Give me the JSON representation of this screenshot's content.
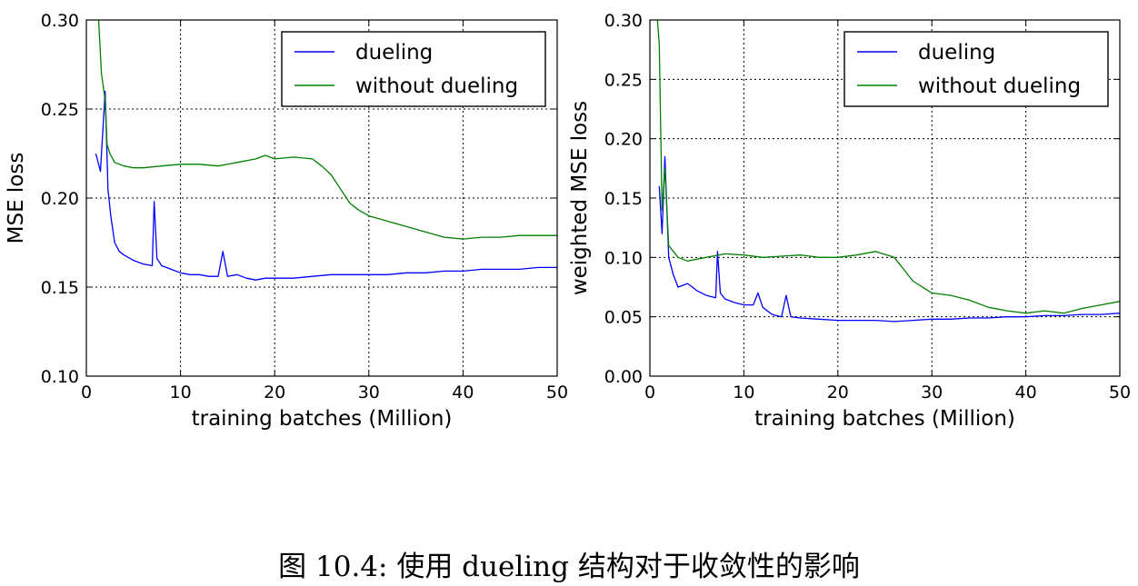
{
  "caption": "图 10.4: 使用 dueling 结构对于收敛性的影响",
  "colors": {
    "dueling": "#0000ff",
    "without_dueling": "#007f00"
  },
  "chart_data": [
    {
      "type": "line",
      "xlabel": "training batches (Million)",
      "ylabel": "MSE loss",
      "xlim": [
        0,
        50
      ],
      "ylim": [
        0.1,
        0.3
      ],
      "xticks": [
        0,
        10,
        20,
        30,
        40,
        50
      ],
      "yticks": [
        0.1,
        0.15,
        0.2,
        0.25,
        0.3
      ],
      "xtick_labels": [
        "0",
        "10",
        "20",
        "30",
        "40",
        "50"
      ],
      "ytick_labels": [
        "0.10",
        "0.15",
        "0.20",
        "0.25",
        "0.30"
      ],
      "grid": true,
      "legend": "top-right",
      "series": [
        {
          "name": "dueling",
          "color": "#0000ff",
          "x": [
            1,
            1.5,
            2,
            2.3,
            2.6,
            3,
            3.5,
            4,
            5,
            6,
            7,
            7.2,
            7.5,
            8,
            9,
            10,
            11,
            12,
            13,
            14,
            14.5,
            15,
            16,
            17,
            18,
            19,
            20,
            22,
            24,
            26,
            28,
            30,
            32,
            34,
            36,
            38,
            40,
            42,
            44,
            46,
            48,
            50
          ],
          "y": [
            0.225,
            0.215,
            0.26,
            0.205,
            0.19,
            0.175,
            0.17,
            0.168,
            0.165,
            0.163,
            0.162,
            0.198,
            0.166,
            0.162,
            0.16,
            0.158,
            0.157,
            0.157,
            0.156,
            0.156,
            0.17,
            0.156,
            0.157,
            0.155,
            0.154,
            0.155,
            0.155,
            0.155,
            0.156,
            0.157,
            0.157,
            0.157,
            0.157,
            0.158,
            0.158,
            0.159,
            0.159,
            0.16,
            0.16,
            0.16,
            0.161,
            0.161
          ]
        },
        {
          "name": "without dueling",
          "color": "#007f00",
          "x": [
            1.3,
            1.6,
            2,
            2.2,
            2.5,
            3,
            4,
            5,
            6,
            8,
            10,
            12,
            14,
            16,
            18,
            19,
            20,
            22,
            24,
            25,
            26,
            27,
            28,
            29,
            30,
            32,
            34,
            36,
            38,
            40,
            42,
            44,
            46,
            48,
            50
          ],
          "y": [
            0.3,
            0.27,
            0.255,
            0.23,
            0.225,
            0.22,
            0.218,
            0.217,
            0.217,
            0.218,
            0.219,
            0.219,
            0.218,
            0.22,
            0.222,
            0.224,
            0.222,
            0.223,
            0.222,
            0.218,
            0.213,
            0.205,
            0.197,
            0.193,
            0.19,
            0.187,
            0.184,
            0.181,
            0.178,
            0.177,
            0.178,
            0.178,
            0.179,
            0.179,
            0.179
          ]
        }
      ]
    },
    {
      "type": "line",
      "xlabel": "training batches (Million)",
      "ylabel": "weighted MSE loss",
      "xlim": [
        0,
        50
      ],
      "ylim": [
        0.0,
        0.3
      ],
      "xticks": [
        0,
        10,
        20,
        30,
        40,
        50
      ],
      "yticks": [
        0.0,
        0.05,
        0.1,
        0.15,
        0.2,
        0.25,
        0.3
      ],
      "xtick_labels": [
        "0",
        "10",
        "20",
        "30",
        "40",
        "50"
      ],
      "ytick_labels": [
        "0.00",
        "0.05",
        "0.10",
        "0.15",
        "0.20",
        "0.25",
        "0.30"
      ],
      "grid": true,
      "legend": "top-right",
      "series": [
        {
          "name": "dueling",
          "color": "#0000ff",
          "x": [
            1,
            1.3,
            1.6,
            2,
            2.5,
            3,
            4,
            5,
            6,
            7,
            7.2,
            7.5,
            8,
            9,
            10,
            11,
            11.5,
            12,
            13,
            14,
            14.5,
            15,
            16,
            18,
            20,
            22,
            24,
            26,
            28,
            30,
            32,
            34,
            36,
            38,
            40,
            42,
            44,
            46,
            48,
            50
          ],
          "y": [
            0.16,
            0.12,
            0.185,
            0.1,
            0.085,
            0.075,
            0.078,
            0.072,
            0.068,
            0.066,
            0.105,
            0.07,
            0.065,
            0.062,
            0.06,
            0.06,
            0.07,
            0.058,
            0.052,
            0.05,
            0.068,
            0.05,
            0.049,
            0.048,
            0.047,
            0.047,
            0.047,
            0.046,
            0.047,
            0.048,
            0.048,
            0.049,
            0.049,
            0.05,
            0.05,
            0.051,
            0.051,
            0.052,
            0.052,
            0.053
          ]
        },
        {
          "name": "without dueling",
          "color": "#007f00",
          "x": [
            0.8,
            1,
            1.3,
            1.6,
            2,
            2.5,
            3,
            4,
            6,
            8,
            10,
            12,
            14,
            16,
            18,
            20,
            22,
            24,
            26,
            27,
            28,
            29,
            30,
            32,
            34,
            36,
            38,
            40,
            42,
            44,
            46,
            48,
            50
          ],
          "y": [
            0.3,
            0.28,
            0.14,
            0.175,
            0.11,
            0.105,
            0.1,
            0.097,
            0.1,
            0.103,
            0.102,
            0.1,
            0.101,
            0.102,
            0.1,
            0.1,
            0.102,
            0.105,
            0.1,
            0.09,
            0.08,
            0.075,
            0.07,
            0.068,
            0.064,
            0.058,
            0.055,
            0.053,
            0.055,
            0.053,
            0.057,
            0.06,
            0.063
          ]
        }
      ]
    }
  ]
}
